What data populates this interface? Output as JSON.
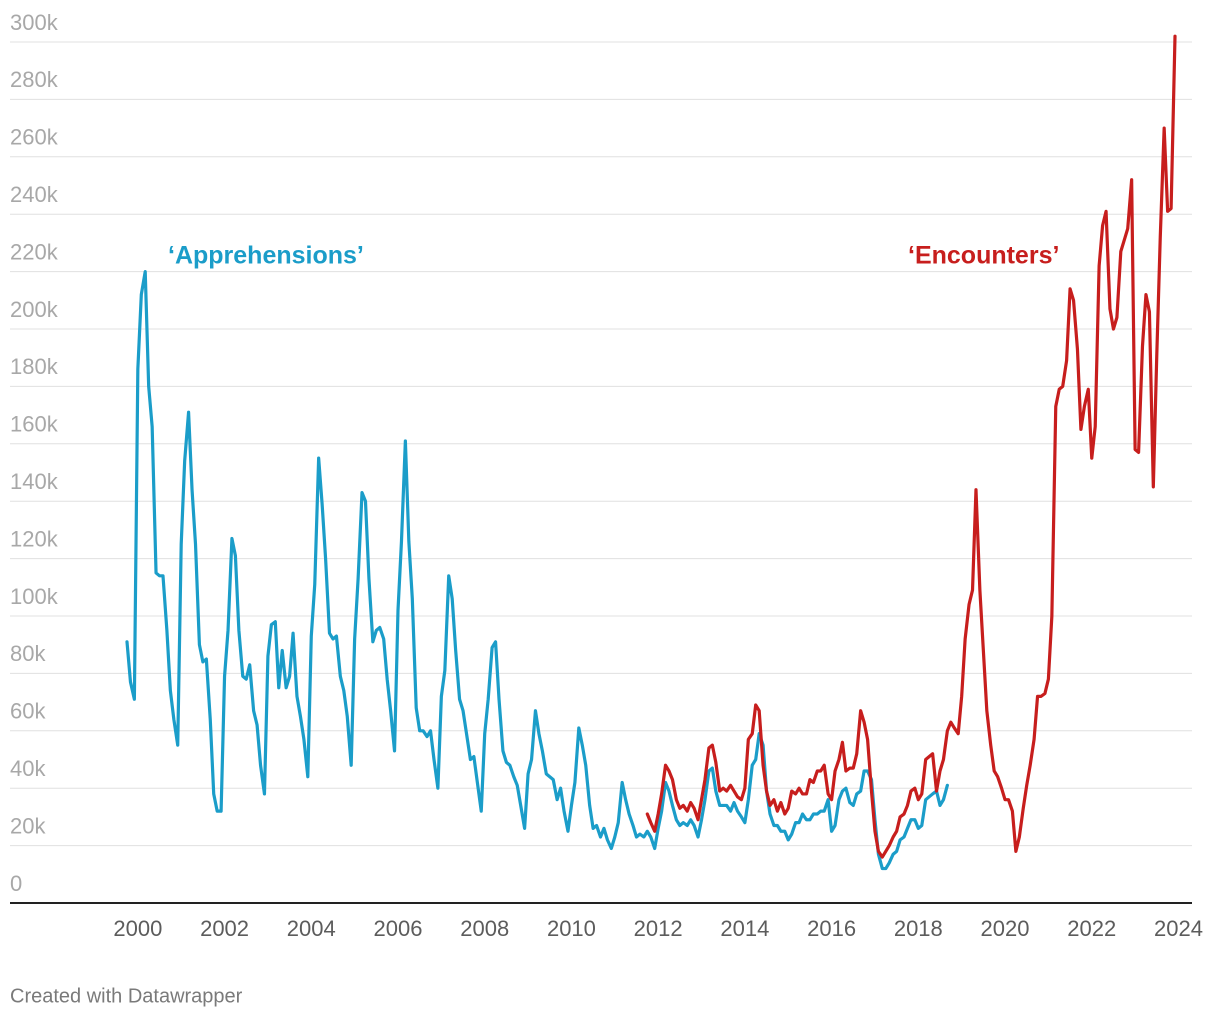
{
  "chart_data": {
    "type": "line",
    "source": "Created with Datawrapper",
    "x": [
      1999.75,
      1999.83,
      1999.92,
      2000,
      2000.08,
      2000.17,
      2000.25,
      2000.33,
      2000.42,
      2000.5,
      2000.58,
      2000.67,
      2000.75,
      2000.83,
      2000.92,
      2001,
      2001.08,
      2001.17,
      2001.25,
      2001.33,
      2001.42,
      2001.5,
      2001.58,
      2001.67,
      2001.75,
      2001.83,
      2001.92,
      2002,
      2002.08,
      2002.17,
      2002.25,
      2002.33,
      2002.42,
      2002.5,
      2002.58,
      2002.67,
      2002.75,
      2002.83,
      2002.92,
      2003,
      2003.08,
      2003.17,
      2003.25,
      2003.33,
      2003.42,
      2003.5,
      2003.58,
      2003.67,
      2003.75,
      2003.83,
      2003.92,
      2004,
      2004.08,
      2004.17,
      2004.25,
      2004.33,
      2004.42,
      2004.5,
      2004.58,
      2004.67,
      2004.75,
      2004.83,
      2004.92,
      2005,
      2005.08,
      2005.17,
      2005.25,
      2005.33,
      2005.42,
      2005.5,
      2005.58,
      2005.67,
      2005.75,
      2005.83,
      2005.92,
      2006,
      2006.08,
      2006.17,
      2006.25,
      2006.33,
      2006.42,
      2006.5,
      2006.58,
      2006.67,
      2006.75,
      2006.83,
      2006.92,
      2007,
      2007.08,
      2007.17,
      2007.25,
      2007.33,
      2007.42,
      2007.5,
      2007.58,
      2007.67,
      2007.75,
      2007.83,
      2007.92,
      2008,
      2008.08,
      2008.17,
      2008.25,
      2008.33,
      2008.42,
      2008.5,
      2008.58,
      2008.67,
      2008.75,
      2008.83,
      2008.92,
      2009,
      2009.08,
      2009.17,
      2009.25,
      2009.33,
      2009.42,
      2009.5,
      2009.58,
      2009.67,
      2009.75,
      2009.83,
      2009.92,
      2010,
      2010.08,
      2010.17,
      2010.25,
      2010.33,
      2010.42,
      2010.5,
      2010.58,
      2010.67,
      2010.75,
      2010.83,
      2010.92,
      2011,
      2011.08,
      2011.17,
      2011.25,
      2011.33,
      2011.42,
      2011.5,
      2011.58,
      2011.67,
      2011.75,
      2011.83,
      2011.92,
      2012,
      2012.08,
      2012.17,
      2012.25,
      2012.33,
      2012.42,
      2012.5,
      2012.58,
      2012.67,
      2012.75,
      2012.83,
      2012.92,
      2013,
      2013.08,
      2013.17,
      2013.25,
      2013.33,
      2013.42,
      2013.5,
      2013.58,
      2013.67,
      2013.75,
      2013.83,
      2013.92,
      2014,
      2014.08,
      2014.17,
      2014.25,
      2014.33,
      2014.42,
      2014.5,
      2014.58,
      2014.67,
      2014.75,
      2014.83,
      2014.92,
      2015,
      2015.08,
      2015.17,
      2015.25,
      2015.33,
      2015.42,
      2015.5,
      2015.58,
      2015.67,
      2015.75,
      2015.83,
      2015.92,
      2016,
      2016.08,
      2016.17,
      2016.25,
      2016.33,
      2016.42,
      2016.5,
      2016.58,
      2016.67,
      2016.75,
      2016.83,
      2016.92,
      2017,
      2017.08,
      2017.17,
      2017.25,
      2017.33,
      2017.42,
      2017.5,
      2017.58,
      2017.67,
      2017.75,
      2017.83,
      2017.92,
      2018,
      2018.08,
      2018.17,
      2018.25,
      2018.33,
      2018.42,
      2018.5,
      2018.58,
      2018.67,
      2018.75,
      2018.83,
      2018.92,
      2019,
      2019.08,
      2019.17,
      2019.25,
      2019.33,
      2019.42,
      2019.5,
      2019.58,
      2019.67,
      2019.75,
      2019.83,
      2019.92,
      2020,
      2020.08,
      2020.17,
      2020.25,
      2020.33,
      2020.42,
      2020.5,
      2020.58,
      2020.67,
      2020.75,
      2020.83,
      2020.92,
      2021,
      2021.08,
      2021.17,
      2021.25,
      2021.33,
      2021.42,
      2021.5,
      2021.58,
      2021.67,
      2021.75,
      2021.83,
      2021.92,
      2022,
      2022.08,
      2022.17,
      2022.25,
      2022.33,
      2022.42,
      2022.5,
      2022.58,
      2022.67,
      2022.75,
      2022.83,
      2022.92,
      2023,
      2023.08,
      2023.17,
      2023.25,
      2023.33,
      2023.42,
      2023.5,
      2023.58,
      2023.67,
      2023.75,
      2023.83,
      2023.92
    ],
    "series": [
      {
        "name": "‘Apprehensions’",
        "color": "#1b9dc9",
        "values": [
          91000,
          77000,
          71000,
          186000,
          212000,
          220000,
          180000,
          166000,
          115000,
          114000,
          114000,
          95000,
          74000,
          64000,
          55000,
          125000,
          154000,
          171000,
          144000,
          125000,
          90000,
          84000,
          85000,
          64000,
          38000,
          32000,
          32000,
          79000,
          95000,
          127000,
          121000,
          95000,
          79000,
          78000,
          83000,
          67000,
          62000,
          48000,
          38000,
          86000,
          97000,
          98000,
          75000,
          88000,
          75000,
          79000,
          94000,
          72000,
          65000,
          57000,
          44000,
          93000,
          111000,
          155000,
          139000,
          120000,
          94000,
          92000,
          93000,
          79000,
          74000,
          65000,
          48000,
          92000,
          113000,
          143000,
          140000,
          113000,
          91000,
          95000,
          96000,
          92000,
          78000,
          67000,
          53000,
          102000,
          126000,
          161000,
          126000,
          106000,
          68000,
          60000,
          60000,
          58000,
          60000,
          50000,
          40000,
          72000,
          81000,
          114000,
          106000,
          88000,
          71000,
          67000,
          59000,
          50000,
          51000,
          42000,
          32000,
          59000,
          71000,
          89000,
          91000,
          71000,
          53000,
          49000,
          48000,
          44000,
          41000,
          34000,
          26000,
          45000,
          50000,
          67000,
          59000,
          53000,
          45000,
          44000,
          43000,
          36000,
          40000,
          32000,
          25000,
          34000,
          42000,
          61000,
          55000,
          48000,
          34000,
          26000,
          27000,
          23000,
          26000,
          22000,
          19000,
          23000,
          28000,
          42000,
          36000,
          31000,
          27000,
          23000,
          24000,
          23000,
          25000,
          23000,
          19000,
          26000,
          32000,
          42000,
          39000,
          34000,
          29000,
          27000,
          28000,
          27000,
          29000,
          27000,
          23000,
          29000,
          36000,
          46000,
          47000,
          39000,
          34000,
          34000,
          34000,
          32000,
          35000,
          32000,
          30000,
          28000,
          36000,
          48000,
          50000,
          59000,
          55000,
          39000,
          31000,
          27000,
          27000,
          25000,
          25000,
          22000,
          24000,
          28000,
          28000,
          31000,
          29000,
          29000,
          31000,
          31000,
          32000,
          32000,
          36000,
          25000,
          27000,
          36000,
          39000,
          40000,
          35000,
          34000,
          38000,
          39000,
          46000,
          46000,
          43000,
          29000,
          17000,
          12000,
          12000,
          14000,
          17000,
          18000,
          22000,
          23000,
          26000,
          29000,
          29000,
          26000,
          27000,
          36000,
          37000,
          38000,
          39000,
          34000,
          36000,
          41000,
          null,
          null,
          null,
          null,
          null,
          null,
          null,
          null,
          null,
          null,
          null,
          null,
          null,
          null,
          null,
          null,
          null,
          null,
          null,
          null,
          null,
          null,
          null,
          null,
          null,
          null,
          null,
          null,
          null,
          null,
          null,
          null,
          null,
          null,
          null,
          null,
          null,
          null,
          null,
          null,
          null,
          null,
          null,
          null,
          null,
          null,
          null,
          null,
          null,
          null,
          null,
          null,
          null,
          null,
          null,
          null,
          null,
          null,
          null,
          null,
          null,
          null,
          null
        ]
      },
      {
        "name": "‘Encounters’",
        "color": "#c71e1d",
        "values": [
          null,
          null,
          null,
          null,
          null,
          null,
          null,
          null,
          null,
          null,
          null,
          null,
          null,
          null,
          null,
          null,
          null,
          null,
          null,
          null,
          null,
          null,
          null,
          null,
          null,
          null,
          null,
          null,
          null,
          null,
          null,
          null,
          null,
          null,
          null,
          null,
          null,
          null,
          null,
          null,
          null,
          null,
          null,
          null,
          null,
          null,
          null,
          null,
          null,
          null,
          null,
          null,
          null,
          null,
          null,
          null,
          null,
          null,
          null,
          null,
          null,
          null,
          null,
          null,
          null,
          null,
          null,
          null,
          null,
          null,
          null,
          null,
          null,
          null,
          null,
          null,
          null,
          null,
          null,
          null,
          null,
          null,
          null,
          null,
          null,
          null,
          null,
          null,
          null,
          null,
          null,
          null,
          null,
          null,
          null,
          null,
          null,
          null,
          null,
          null,
          null,
          null,
          null,
          null,
          null,
          null,
          null,
          null,
          null,
          null,
          null,
          null,
          null,
          null,
          null,
          null,
          null,
          null,
          null,
          null,
          null,
          null,
          null,
          null,
          null,
          null,
          null,
          null,
          null,
          null,
          null,
          null,
          null,
          null,
          null,
          null,
          null,
          null,
          null,
          null,
          null,
          null,
          null,
          null,
          31000,
          28000,
          25000,
          31000,
          38000,
          48000,
          46000,
          43000,
          36000,
          33000,
          34000,
          32000,
          35000,
          33000,
          29000,
          36000,
          43000,
          54000,
          55000,
          49000,
          39000,
          40000,
          39000,
          41000,
          39000,
          37000,
          36000,
          40000,
          57000,
          59000,
          69000,
          67000,
          48000,
          39000,
          34000,
          36000,
          32000,
          35000,
          31000,
          33000,
          39000,
          38000,
          40000,
          38000,
          38000,
          43000,
          42000,
          46000,
          46000,
          48000,
          38000,
          36000,
          46000,
          50000,
          56000,
          46000,
          47000,
          47000,
          52000,
          67000,
          63000,
          57000,
          39000,
          25000,
          18000,
          16000,
          18000,
          20000,
          23000,
          25000,
          30000,
          31000,
          34000,
          39000,
          40000,
          36000,
          38000,
          50000,
          51000,
          52000,
          39000,
          46000,
          50000,
          60000,
          63000,
          61000,
          59000,
          72000,
          92000,
          104000,
          109000,
          144000,
          109000,
          88000,
          67000,
          55000,
          46000,
          44000,
          40000,
          36000,
          36000,
          32000,
          18000,
          23000,
          33000,
          41000,
          48000,
          57000,
          72000,
          72000,
          73000,
          78000,
          100000,
          173000,
          179000,
          180000,
          189000,
          214000,
          210000,
          193000,
          165000,
          173000,
          179000,
          155000,
          166000,
          222000,
          236000,
          241000,
          207000,
          200000,
          204000,
          227000,
          231000,
          235000,
          252000,
          158000,
          157000,
          194000,
          212000,
          206000,
          145000,
          191000,
          232000,
          270000,
          241000,
          242000,
          302000
        ]
      }
    ],
    "xlim": [
      1999.75,
      2023.92
    ],
    "xticks": [
      2000,
      2002,
      2004,
      2006,
      2008,
      2010,
      2012,
      2014,
      2016,
      2018,
      2020,
      2022,
      2024
    ],
    "ylim": [
      0,
      300000
    ],
    "yticks": [
      0,
      {
        "value": 20000,
        "label": "20k"
      },
      {
        "value": 40000,
        "label": "40k"
      },
      {
        "value": 60000,
        "label": "60k"
      },
      {
        "value": 80000,
        "label": "80k"
      },
      {
        "value": 100000,
        "label": "100k"
      },
      {
        "value": 120000,
        "label": "120k"
      },
      {
        "value": 140000,
        "label": "140k"
      },
      {
        "value": 160000,
        "label": "160k"
      },
      {
        "value": 180000,
        "label": "180k"
      },
      {
        "value": 200000,
        "label": "200k"
      },
      {
        "value": 220000,
        "label": "220k"
      },
      {
        "value": 240000,
        "label": "240k"
      },
      {
        "value": 260000,
        "label": "260k"
      },
      {
        "value": 280000,
        "label": "280k"
      },
      {
        "value": 300000,
        "label": "300k"
      }
    ],
    "grid": true
  }
}
